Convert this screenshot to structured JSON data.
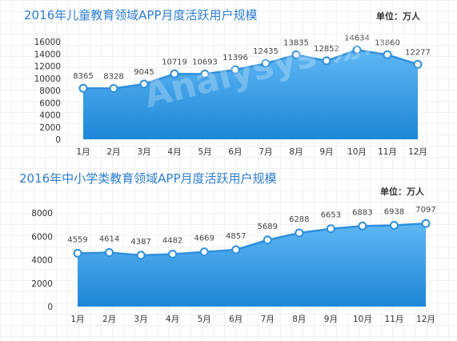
{
  "chart_data": [
    {
      "type": "area",
      "title": "2016年儿童教育领域APP月度活跃用户规模",
      "unit": "单位：万人",
      "categories": [
        "1月",
        "2月",
        "3月",
        "4月",
        "5月",
        "6月",
        "7月",
        "8月",
        "9月",
        "10月",
        "11月",
        "12月"
      ],
      "values": [
        8365,
        8328,
        9045,
        10719,
        10693,
        11396,
        12435,
        13835,
        12852,
        14634,
        13860,
        12277
      ],
      "yticks": [
        0,
        2000,
        4000,
        6000,
        8000,
        10000,
        12000,
        14000,
        16000
      ],
      "ylim": [
        0,
        16000
      ],
      "xlabel": "",
      "ylabel": "",
      "grid": false,
      "legend": "none"
    },
    {
      "type": "area",
      "title": "2016年中小学类教育领域APP月度活跃用户规模",
      "unit": "单位：万人",
      "categories": [
        "1月",
        "2月",
        "3月",
        "4月",
        "5月",
        "6月",
        "7月",
        "8月",
        "9月",
        "10月",
        "11月",
        "12月"
      ],
      "values": [
        4559,
        4614,
        4387,
        4482,
        4669,
        4857,
        5689,
        6288,
        6653,
        6883,
        6938,
        7097
      ],
      "yticks": [
        0,
        2000,
        4000,
        6000,
        8000
      ],
      "ylim": [
        0,
        8000
      ],
      "xlabel": "",
      "ylabel": "",
      "grid": false,
      "legend": "none"
    }
  ],
  "colors": {
    "title": "#2f7fd1",
    "line": "#2f8fdc",
    "area_top": "#5fb7f3",
    "area_bottom": "#1c86d8",
    "marker_fill": "#ffffff",
    "value_label": "#444444"
  },
  "watermark": "Analysys 易观"
}
